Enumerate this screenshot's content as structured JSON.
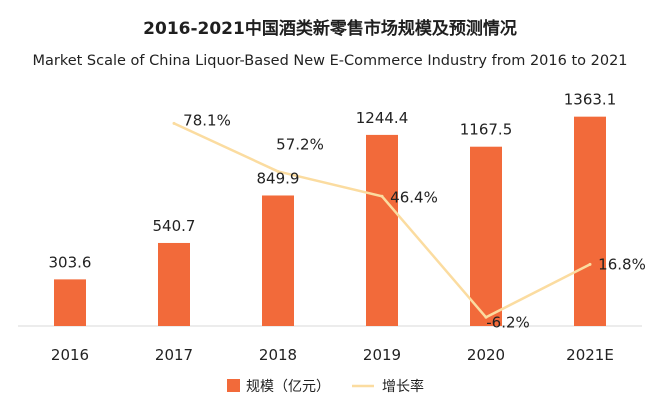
{
  "chart_data": {
    "type": "bar",
    "title": "2016-2021中国酒类新零售市场规模及预测情况",
    "subtitle": "Market Scale of China  Liquor-Based New E-Commerce Industry from 2016 to 2021",
    "categories": [
      "2016",
      "2017",
      "2018",
      "2019",
      "2020",
      "2021E"
    ],
    "series": [
      {
        "name": "规模（亿元）",
        "type": "bar",
        "axis": "left",
        "values": [
          303.6,
          540.7,
          849.9,
          1244.4,
          1167.5,
          1363.1
        ],
        "labels": [
          "303.6",
          "540.7",
          "849.9",
          "1244.4",
          "1167.5",
          "1363.1"
        ],
        "color": "#f26a3a"
      },
      {
        "name": "增长率",
        "type": "line",
        "axis": "right",
        "values": [
          null,
          78.1,
          57.2,
          46.4,
          -6.2,
          16.8
        ],
        "labels": [
          "",
          "78.1%",
          "57.2%",
          "46.4%",
          "-6.2%",
          "16.8%"
        ],
        "color": "#fbdca0"
      }
    ],
    "ylim_left": [
      0,
      1400
    ],
    "ylim_right": [
      -10,
      90
    ],
    "grid": false,
    "legend_position": "bottom"
  }
}
